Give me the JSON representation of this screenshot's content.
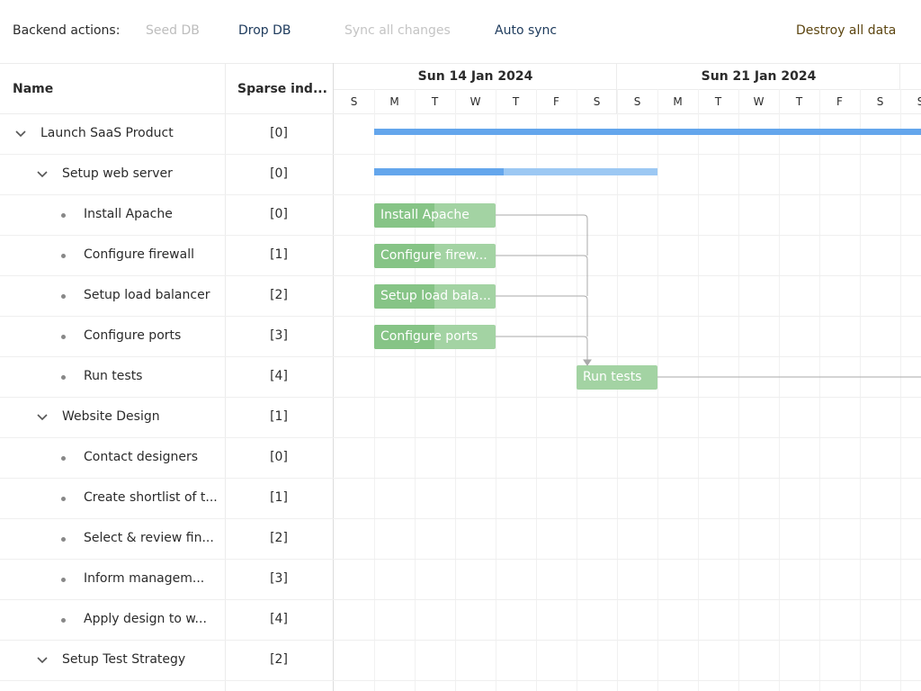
{
  "toolbar": {
    "label": "Backend actions:",
    "buttons": [
      "Seed DB",
      "Drop DB",
      "Sync all changes",
      "Auto sync",
      "Destroy all data"
    ]
  },
  "grid": {
    "columns": [
      "Name",
      "Sparse ind..."
    ],
    "rows": [
      {
        "name": "Launch SaaS Product",
        "index": "[0]"
      },
      {
        "name": "Setup web server",
        "index": "[0]"
      },
      {
        "name": "Install Apache",
        "index": "[0]"
      },
      {
        "name": "Configure firewall",
        "index": "[1]"
      },
      {
        "name": "Setup load balancer",
        "index": "[2]"
      },
      {
        "name": "Configure ports",
        "index": "[3]"
      },
      {
        "name": "Run tests",
        "index": "[4]"
      },
      {
        "name": "Website Design",
        "index": "[1]"
      },
      {
        "name": "Contact designers",
        "index": "[0]"
      },
      {
        "name": "Create shortlist of t...",
        "index": "[1]"
      },
      {
        "name": "Select & review fin...",
        "index": "[2]"
      },
      {
        "name": "Inform managem...",
        "index": "[3]"
      },
      {
        "name": "Apply design to w...",
        "index": "[4]"
      },
      {
        "name": "Setup Test Strategy",
        "index": "[2]"
      }
    ]
  },
  "timeline": {
    "weeks": [
      "Sun 14 Jan 2024",
      "Sun 21 Jan 2024"
    ],
    "days": [
      "S",
      "M",
      "T",
      "W",
      "T",
      "F",
      "S",
      "S",
      "M",
      "T",
      "W",
      "T",
      "F",
      "S",
      "S"
    ]
  },
  "tasks": [
    "Install Apache",
    "Configure firew...",
    "Setup load bala...",
    "Configure ports",
    "Run tests"
  ]
}
